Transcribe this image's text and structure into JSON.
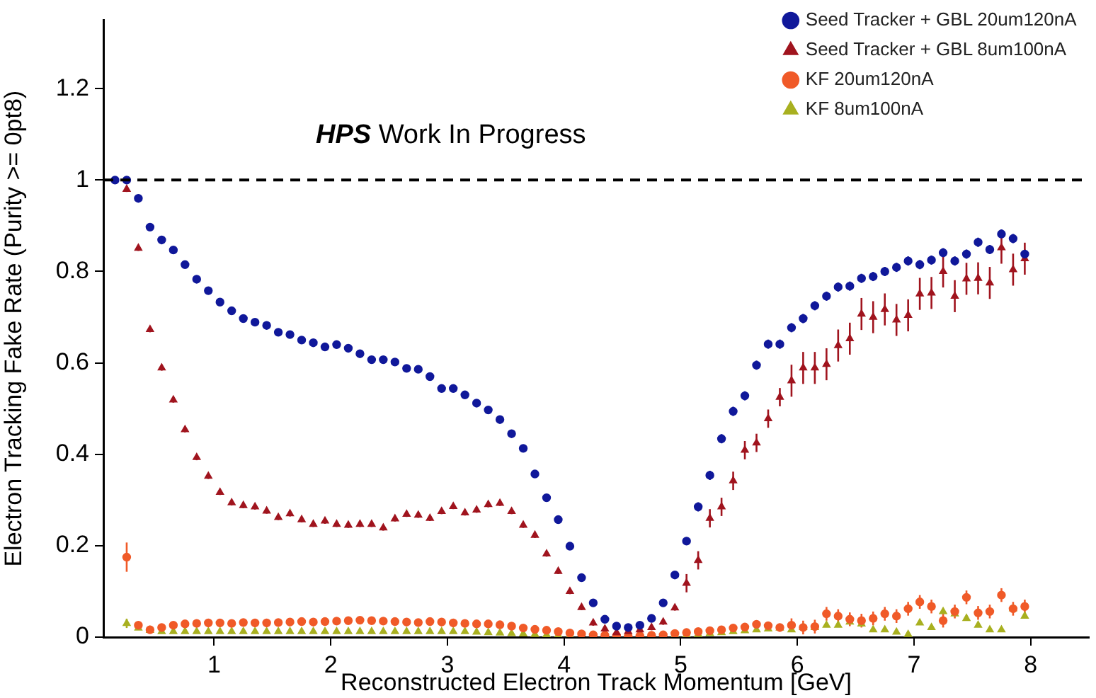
{
  "chart_data": {
    "type": "scatter",
    "xlabel": "Reconstructed Electron Track Momentum [GeV]",
    "ylabel": "Electron Tracking Fake Rate (Purity >= 0pt8)",
    "annotations": [
      "HPS Work In Progress"
    ],
    "x": [
      0.15,
      0.25,
      0.35,
      0.45,
      0.55,
      0.65,
      0.75,
      0.85,
      0.95,
      1.05,
      1.15,
      1.25,
      1.35,
      1.45,
      1.55,
      1.65,
      1.75,
      1.85,
      1.95,
      2.05,
      2.15,
      2.25,
      2.35,
      2.45,
      2.55,
      2.65,
      2.75,
      2.85,
      2.95,
      3.05,
      3.15,
      3.25,
      3.35,
      3.45,
      3.55,
      3.65,
      3.75,
      3.85,
      3.95,
      4.05,
      4.15,
      4.25,
      4.35,
      4.45,
      4.55,
      4.65,
      4.75,
      4.85,
      4.95,
      5.05,
      5.15,
      5.25,
      5.35,
      5.45,
      5.55,
      5.65,
      5.75,
      5.85,
      5.95,
      6.05,
      6.15,
      6.25,
      6.35,
      6.45,
      6.55,
      6.65,
      6.75,
      6.85,
      6.95,
      7.05,
      7.15,
      7.25,
      7.35,
      7.45,
      7.55,
      7.65,
      7.75,
      7.85,
      7.95
    ],
    "series": [
      {
        "name": "Seed Tracker + GBL 20um120nA",
        "color": "#10189a",
        "marker": "circle",
        "values": [
          1.0,
          1.0,
          0.96,
          0.897,
          0.869,
          0.847,
          0.815,
          0.783,
          0.758,
          0.733,
          0.714,
          0.697,
          0.689,
          0.682,
          0.667,
          0.662,
          0.65,
          0.644,
          0.635,
          0.64,
          0.632,
          0.62,
          0.607,
          0.607,
          0.602,
          0.588,
          0.586,
          0.57,
          0.544,
          0.544,
          0.53,
          0.512,
          0.497,
          0.476,
          0.445,
          0.413,
          0.357,
          0.305,
          0.257,
          0.199,
          0.13,
          0.075,
          0.039,
          0.024,
          0.021,
          0.026,
          0.041,
          0.075,
          0.136,
          0.21,
          0.285,
          0.354,
          0.434,
          0.494,
          0.528,
          0.595,
          0.641,
          0.641,
          0.677,
          0.697,
          0.725,
          0.746,
          0.766,
          0.768,
          0.785,
          0.789,
          0.8,
          0.809,
          0.823,
          0.815,
          0.825,
          0.841,
          0.823,
          0.838,
          0.864,
          0.848,
          0.882,
          0.872,
          0.838
        ],
        "errors": [
          0.005,
          0.005,
          0.005,
          0.005,
          0.005,
          0.005,
          0.005,
          0.005,
          0.005,
          0.005,
          0.005,
          0.005,
          0.005,
          0.005,
          0.005,
          0.005,
          0.005,
          0.005,
          0.005,
          0.005,
          0.005,
          0.005,
          0.005,
          0.005,
          0.005,
          0.005,
          0.005,
          0.005,
          0.005,
          0.005,
          0.005,
          0.005,
          0.005,
          0.005,
          0.005,
          0.005,
          0.005,
          0.005,
          0.005,
          0.005,
          0.005,
          0.005,
          0.005,
          0.005,
          0.005,
          0.005,
          0.005,
          0.005,
          0.005,
          0.005,
          0.01,
          0.01,
          0.01,
          0.01,
          0.01,
          0.01,
          0.01,
          0.01,
          0.01,
          0.01,
          0.01,
          0.01,
          0.01,
          0.01,
          0.01,
          0.01,
          0.01,
          0.01,
          0.01,
          0.01,
          0.01,
          0.01,
          0.01,
          0.01,
          0.01,
          0.01,
          0.01,
          0.01,
          0.01
        ]
      },
      {
        "name": "Seed Tracker + GBL 8um100nA",
        "color": "#a0141e",
        "marker": "triangle",
        "values": [
          null,
          0.98,
          0.851,
          0.673,
          0.589,
          0.519,
          0.454,
          0.393,
          0.352,
          0.317,
          0.294,
          0.288,
          0.285,
          0.276,
          0.262,
          0.27,
          0.257,
          0.247,
          0.254,
          0.247,
          0.245,
          0.247,
          0.247,
          0.239,
          0.259,
          0.269,
          0.267,
          0.26,
          0.275,
          0.286,
          0.272,
          0.278,
          0.29,
          0.293,
          0.275,
          0.245,
          0.223,
          0.182,
          0.144,
          0.1,
          0.065,
          0.031,
          0.018,
          0.01,
          0.012,
          0.016,
          0.021,
          0.033,
          0.064,
          0.118,
          0.168,
          0.26,
          0.285,
          0.342,
          0.409,
          0.425,
          0.478,
          0.525,
          0.561,
          0.589,
          0.589,
          0.597,
          0.638,
          0.653,
          0.707,
          0.7,
          0.717,
          0.694,
          0.704,
          0.751,
          0.753,
          0.8,
          0.746,
          0.784,
          0.785,
          0.775,
          0.852,
          0.804,
          0.828
        ],
        "errors": [
          null,
          0.006,
          0.006,
          0.006,
          0.006,
          0.006,
          0.006,
          0.006,
          0.006,
          0.006,
          0.006,
          0.006,
          0.006,
          0.006,
          0.006,
          0.006,
          0.006,
          0.006,
          0.006,
          0.006,
          0.006,
          0.006,
          0.006,
          0.006,
          0.006,
          0.006,
          0.006,
          0.006,
          0.006,
          0.006,
          0.006,
          0.006,
          0.006,
          0.006,
          0.006,
          0.006,
          0.006,
          0.006,
          0.006,
          0.006,
          0.006,
          0.006,
          0.006,
          0.006,
          0.006,
          0.006,
          0.006,
          0.006,
          0.006,
          0.02,
          0.02,
          0.02,
          0.02,
          0.02,
          0.02,
          0.02,
          0.02,
          0.02,
          0.035,
          0.035,
          0.035,
          0.035,
          0.035,
          0.035,
          0.035,
          0.035,
          0.035,
          0.035,
          0.035,
          0.035,
          0.035,
          0.035,
          0.035,
          0.035,
          0.035,
          0.035,
          0.035,
          0.035,
          0.035
        ]
      },
      {
        "name": "KF 20um120nA",
        "color": "#f05a28",
        "marker": "circle",
        "values": [
          null,
          0.175,
          0.026,
          0.016,
          0.021,
          0.026,
          0.029,
          0.03,
          0.031,
          0.031,
          0.03,
          0.032,
          0.031,
          0.031,
          0.032,
          0.033,
          0.034,
          0.033,
          0.034,
          0.035,
          0.036,
          0.037,
          0.036,
          0.035,
          0.034,
          0.033,
          0.032,
          0.034,
          0.033,
          0.031,
          0.03,
          0.029,
          0.029,
          0.027,
          0.024,
          0.02,
          0.017,
          0.015,
          0.012,
          0.009,
          0.007,
          0.005,
          0.004,
          0.003,
          0.002,
          0.003,
          0.004,
          0.005,
          0.008,
          0.01,
          0.012,
          0.014,
          0.016,
          0.02,
          0.022,
          0.028,
          0.025,
          0.021,
          0.026,
          0.021,
          0.023,
          0.051,
          0.046,
          0.039,
          0.036,
          0.041,
          0.051,
          0.046,
          0.062,
          0.077,
          0.067,
          0.036,
          0.056,
          0.087,
          0.053,
          0.056,
          0.092,
          0.062,
          0.067
        ],
        "errors": [
          null,
          0.032,
          0.002,
          0.002,
          0.002,
          0.002,
          0.002,
          0.002,
          0.002,
          0.002,
          0.002,
          0.002,
          0.002,
          0.002,
          0.002,
          0.002,
          0.002,
          0.002,
          0.002,
          0.002,
          0.002,
          0.002,
          0.002,
          0.002,
          0.002,
          0.002,
          0.002,
          0.002,
          0.002,
          0.002,
          0.002,
          0.002,
          0.002,
          0.002,
          0.002,
          0.002,
          0.002,
          0.002,
          0.002,
          0.002,
          0.002,
          0.002,
          0.002,
          0.002,
          0.002,
          0.002,
          0.002,
          0.002,
          0.002,
          0.002,
          0.002,
          0.002,
          0.002,
          0.002,
          0.002,
          0.002,
          0.002,
          0.002,
          0.015,
          0.015,
          0.015,
          0.015,
          0.015,
          0.015,
          0.015,
          0.015,
          0.015,
          0.015,
          0.015,
          0.015,
          0.015,
          0.015,
          0.015,
          0.015,
          0.015,
          0.015,
          0.015,
          0.015,
          0.015
        ]
      },
      {
        "name": "KF 8um100nA",
        "color": "#a8b020",
        "marker": "triangle",
        "values": [
          null,
          0.03,
          0.02,
          0.015,
          0.012,
          0.012,
          0.012,
          0.012,
          0.012,
          0.012,
          0.012,
          0.012,
          0.012,
          0.012,
          0.012,
          0.012,
          0.012,
          0.012,
          0.012,
          0.012,
          0.012,
          0.012,
          0.012,
          0.012,
          0.012,
          0.012,
          0.012,
          0.012,
          0.012,
          0.012,
          0.012,
          0.011,
          0.01,
          0.009,
          0.008,
          0.007,
          0.006,
          0.005,
          0.004,
          0.003,
          null,
          null,
          null,
          null,
          null,
          null,
          null,
          null,
          0.004,
          0.005,
          0.006,
          0.008,
          0.01,
          0.012,
          0.014,
          0.016,
          0.018,
          0.02,
          0.016,
          0.021,
          0.021,
          0.026,
          0.026,
          0.033,
          0.029,
          0.016,
          0.016,
          0.011,
          0.006,
          0.031,
          0.021,
          0.056,
          0.051,
          0.041,
          0.026,
          0.016,
          0.016,
          0.062,
          0.046
        ],
        "errors": [
          null,
          0.01,
          0.002,
          0.002,
          0.002,
          0.002,
          0.002,
          0.002,
          0.002,
          0.002,
          0.002,
          0.002,
          0.002,
          0.002,
          0.002,
          0.002,
          0.002,
          0.002,
          0.002,
          0.002,
          0.002,
          0.002,
          0.002,
          0.002,
          0.002,
          0.002,
          0.002,
          0.002,
          0.002,
          0.002,
          0.002,
          0.002,
          0.002,
          0.002,
          0.002,
          0.002,
          0.002,
          0.002,
          0.002,
          0.002,
          null,
          null,
          null,
          null,
          null,
          null,
          null,
          null,
          0.002,
          0.002,
          0.002,
          0.002,
          0.002,
          0.002,
          0.002,
          0.002,
          0.002,
          0.002,
          null,
          null,
          null,
          null,
          null,
          null,
          null,
          null,
          null,
          null,
          null,
          null,
          null,
          null,
          null,
          null,
          null,
          null,
          null,
          null,
          null
        ]
      }
    ],
    "xlim": [
      0.05,
      8.5
    ],
    "xticks": [
      1,
      2,
      3,
      4,
      5,
      6,
      7,
      8
    ],
    "ylim": [
      0,
      1.35
    ],
    "yticks": [
      0,
      0.2,
      0.4,
      0.6,
      0.8,
      1,
      1.2
    ],
    "ref_lines": [
      {
        "axis": "y",
        "value": 1,
        "color": "#000000",
        "line_style": "dashed"
      }
    ],
    "grid": false,
    "legend": "top right"
  }
}
